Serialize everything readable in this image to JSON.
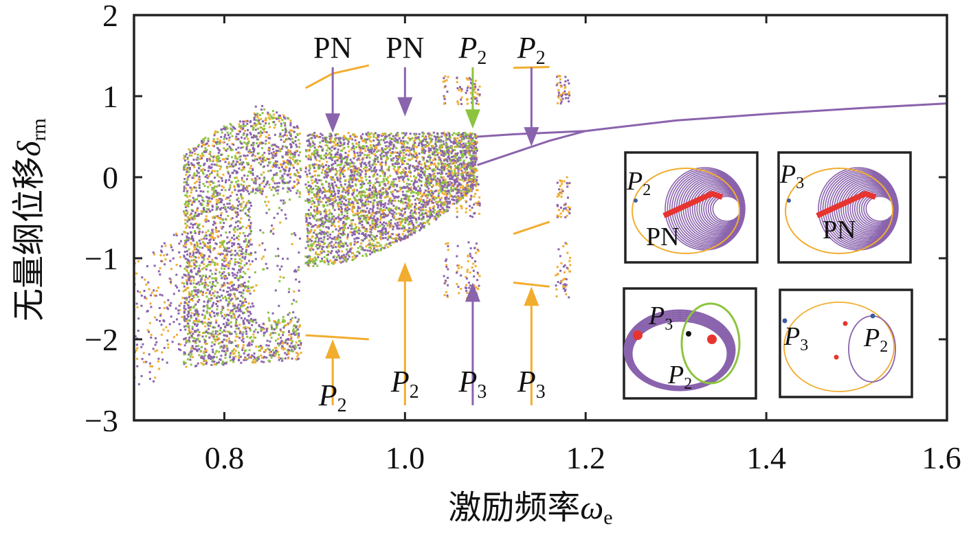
{
  "chart_data": {
    "type": "scatter",
    "xlabel": "激励频率",
    "xlabel_symbol": "ω",
    "xlabel_sub": "e",
    "ylabel": "无量纲位移",
    "ylabel_symbol": "δ",
    "ylabel_sub": "rm",
    "xlim": [
      0.7,
      1.6
    ],
    "ylim": [
      -3,
      2
    ],
    "xticks": [
      0.8,
      1.0,
      1.2,
      1.4,
      1.6
    ],
    "xtick_labels": [
      "0.8",
      "1.0",
      "1.2",
      "1.4",
      "1.6"
    ],
    "yticks": [
      2,
      1,
      0,
      -1,
      -2,
      -3
    ],
    "ytick_labels": [
      "2",
      "1",
      "0",
      "−1",
      "−2",
      "−3"
    ],
    "grid": false,
    "colors": {
      "purple": "#8a63ad",
      "orange": "#f2ad2e",
      "green": "#8cc43f",
      "red": "#e8342f",
      "blue": "#3c5a9e",
      "black": "#111111"
    },
    "series": [
      {
        "color": "purple",
        "periodic_branches": [
          {
            "x": [
              1.08,
              1.12,
              1.16,
              1.2
            ],
            "y": [
              0.5,
              0.53,
              0.55,
              0.57
            ]
          },
          {
            "x": [
              1.08,
              1.12,
              1.16,
              1.2
            ],
            "y": [
              0.15,
              0.3,
              0.45,
              0.57
            ]
          },
          {
            "x": [
              1.2,
              1.3,
              1.4,
              1.5,
              1.6
            ],
            "y": [
              0.57,
              0.7,
              0.78,
              0.85,
              0.91
            ]
          }
        ]
      },
      {
        "color": "orange",
        "periodic_branches": [
          {
            "x": [
              0.89,
              0.92,
              0.96
            ],
            "y": [
              1.1,
              1.28,
              1.38
            ]
          },
          {
            "x": [
              0.89,
              0.92,
              0.96
            ],
            "y": [
              -1.95,
              -1.97,
              -2.0
            ]
          },
          {
            "x": [
              1.12,
              1.16
            ],
            "y": [
              1.35,
              1.36
            ]
          },
          {
            "x": [
              1.12,
              1.16
            ],
            "y": [
              -0.7,
              -0.55
            ]
          },
          {
            "x": [
              1.12,
              1.16
            ],
            "y": [
              -1.3,
              -1.35
            ]
          }
        ]
      }
    ],
    "annotations": [
      {
        "text": "PN",
        "x": 0.92,
        "arrow_to_y": 0.55,
        "color": "purple",
        "side": "top"
      },
      {
        "text": "PN",
        "x": 1.0,
        "arrow_to_y": 0.75,
        "color": "purple",
        "side": "top"
      },
      {
        "text": "P",
        "sub": "2",
        "x": 1.075,
        "arrow_to_y": 0.6,
        "color": "green",
        "side": "top"
      },
      {
        "text": "P",
        "sub": "2",
        "x": 1.14,
        "arrow_to_y": 0.38,
        "color": "purple",
        "side": "top"
      },
      {
        "text": "P",
        "sub": "2",
        "x": 0.92,
        "arrow_to_y": -2.0,
        "color": "orange",
        "side": "bottom"
      },
      {
        "text": "P",
        "sub": "2",
        "x": 1.0,
        "arrow_to_y": -1.05,
        "color": "orange",
        "side": "bottom"
      },
      {
        "text": "P",
        "sub": "3",
        "x": 1.075,
        "arrow_to_y": -1.3,
        "color": "purple",
        "side": "bottom"
      },
      {
        "text": "P",
        "sub": "3",
        "x": 1.14,
        "arrow_to_y": -1.35,
        "color": "orange",
        "side": "bottom"
      }
    ],
    "insets": [
      {
        "position": "upper-left",
        "labels": [
          {
            "text": "P",
            "sub": "2"
          },
          {
            "text": "PN"
          }
        ]
      },
      {
        "position": "upper-right",
        "labels": [
          {
            "text": "P",
            "sub": "3"
          },
          {
            "text": "PN"
          }
        ]
      },
      {
        "position": "lower-left",
        "labels": [
          {
            "text": "P",
            "sub": "3"
          },
          {
            "text": "P",
            "sub": "2"
          }
        ]
      },
      {
        "position": "lower-right",
        "labels": [
          {
            "text": "P",
            "sub": "3"
          },
          {
            "text": "P",
            "sub": "2"
          }
        ]
      }
    ]
  }
}
